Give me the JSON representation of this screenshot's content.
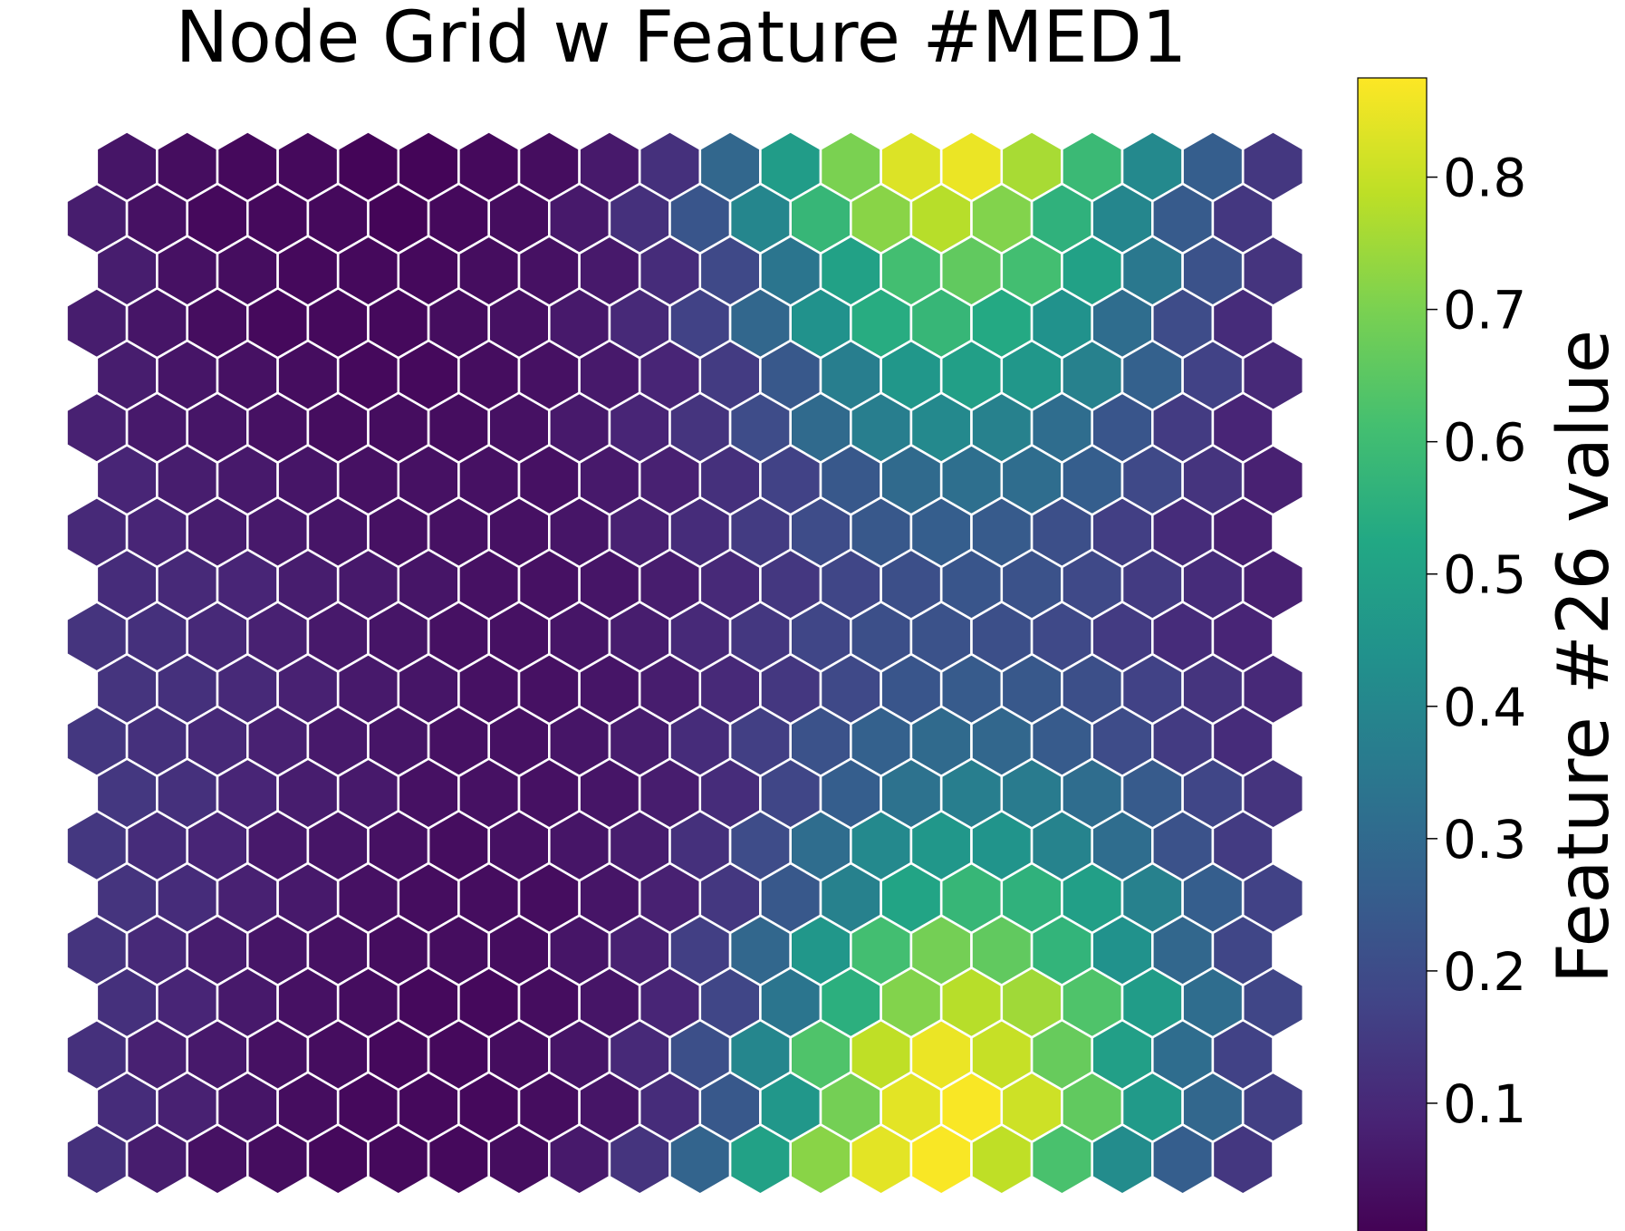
{
  "chart_data": {
    "type": "heatmap",
    "title": "Node Grid w Feature #MED1",
    "grid_shape": "hexagonal",
    "rows": 20,
    "cols": 20,
    "colormap": "viridis",
    "hex_edge_color": "#ffffff",
    "colorbar": {
      "label": "Feature #26 value",
      "range": [
        0.0,
        0.875
      ],
      "ticks": [
        0.1,
        0.2,
        0.3,
        0.4,
        0.5,
        0.6,
        0.7,
        0.8
      ],
      "tick_labels": [
        "0.1",
        "0.2",
        "0.3",
        "0.4",
        "0.5",
        "0.6",
        "0.7",
        "0.8"
      ]
    },
    "values": [
      [
        0.05,
        0.03,
        0.02,
        0.02,
        0.01,
        0.01,
        0.02,
        0.03,
        0.06,
        0.12,
        0.29,
        0.48,
        0.7,
        0.83,
        0.85,
        0.76,
        0.59,
        0.41,
        0.26,
        0.14
      ],
      [
        0.07,
        0.04,
        0.02,
        0.02,
        0.02,
        0.01,
        0.02,
        0.03,
        0.06,
        0.12,
        0.23,
        0.4,
        0.58,
        0.72,
        0.78,
        0.71,
        0.56,
        0.4,
        0.25,
        0.14
      ],
      [
        0.07,
        0.04,
        0.03,
        0.02,
        0.02,
        0.02,
        0.03,
        0.04,
        0.06,
        0.11,
        0.19,
        0.34,
        0.5,
        0.61,
        0.66,
        0.61,
        0.5,
        0.35,
        0.22,
        0.13
      ],
      [
        0.07,
        0.05,
        0.03,
        0.02,
        0.02,
        0.02,
        0.03,
        0.04,
        0.06,
        0.1,
        0.17,
        0.29,
        0.44,
        0.54,
        0.58,
        0.53,
        0.44,
        0.31,
        0.2,
        0.11
      ],
      [
        0.07,
        0.05,
        0.04,
        0.03,
        0.02,
        0.02,
        0.03,
        0.04,
        0.06,
        0.09,
        0.15,
        0.24,
        0.37,
        0.46,
        0.49,
        0.46,
        0.38,
        0.27,
        0.17,
        0.1
      ],
      [
        0.08,
        0.06,
        0.05,
        0.04,
        0.03,
        0.03,
        0.03,
        0.04,
        0.06,
        0.09,
        0.13,
        0.2,
        0.3,
        0.37,
        0.41,
        0.38,
        0.31,
        0.23,
        0.15,
        0.09
      ],
      [
        0.09,
        0.07,
        0.06,
        0.05,
        0.04,
        0.04,
        0.04,
        0.04,
        0.06,
        0.08,
        0.12,
        0.17,
        0.24,
        0.3,
        0.32,
        0.31,
        0.26,
        0.19,
        0.13,
        0.08
      ],
      [
        0.1,
        0.09,
        0.07,
        0.06,
        0.05,
        0.04,
        0.04,
        0.04,
        0.05,
        0.08,
        0.11,
        0.15,
        0.2,
        0.24,
        0.26,
        0.25,
        0.21,
        0.16,
        0.11,
        0.08
      ],
      [
        0.11,
        0.1,
        0.09,
        0.07,
        0.06,
        0.05,
        0.04,
        0.04,
        0.05,
        0.07,
        0.1,
        0.14,
        0.18,
        0.21,
        0.23,
        0.22,
        0.19,
        0.15,
        0.11,
        0.08
      ],
      [
        0.13,
        0.12,
        0.1,
        0.08,
        0.06,
        0.05,
        0.04,
        0.04,
        0.05,
        0.07,
        0.1,
        0.14,
        0.18,
        0.21,
        0.22,
        0.21,
        0.19,
        0.15,
        0.11,
        0.09
      ],
      [
        0.13,
        0.12,
        0.1,
        0.08,
        0.06,
        0.05,
        0.04,
        0.04,
        0.05,
        0.07,
        0.1,
        0.14,
        0.19,
        0.23,
        0.25,
        0.24,
        0.21,
        0.17,
        0.13,
        0.1
      ],
      [
        0.14,
        0.12,
        0.1,
        0.08,
        0.06,
        0.05,
        0.04,
        0.04,
        0.05,
        0.07,
        0.11,
        0.16,
        0.22,
        0.27,
        0.3,
        0.29,
        0.25,
        0.2,
        0.15,
        0.11
      ],
      [
        0.14,
        0.12,
        0.09,
        0.07,
        0.06,
        0.04,
        0.04,
        0.04,
        0.05,
        0.07,
        0.11,
        0.18,
        0.26,
        0.33,
        0.37,
        0.36,
        0.31,
        0.25,
        0.18,
        0.13
      ],
      [
        0.14,
        0.11,
        0.09,
        0.06,
        0.05,
        0.04,
        0.03,
        0.04,
        0.05,
        0.07,
        0.12,
        0.2,
        0.31,
        0.41,
        0.46,
        0.45,
        0.39,
        0.31,
        0.22,
        0.15
      ],
      [
        0.13,
        0.11,
        0.08,
        0.06,
        0.04,
        0.03,
        0.03,
        0.03,
        0.05,
        0.08,
        0.14,
        0.24,
        0.38,
        0.51,
        0.58,
        0.56,
        0.49,
        0.38,
        0.26,
        0.17
      ],
      [
        0.13,
        0.1,
        0.07,
        0.05,
        0.04,
        0.03,
        0.03,
        0.03,
        0.05,
        0.08,
        0.16,
        0.29,
        0.46,
        0.61,
        0.69,
        0.66,
        0.57,
        0.44,
        0.29,
        0.18
      ],
      [
        0.12,
        0.09,
        0.06,
        0.04,
        0.03,
        0.02,
        0.02,
        0.03,
        0.05,
        0.09,
        0.18,
        0.34,
        0.55,
        0.71,
        0.78,
        0.75,
        0.63,
        0.48,
        0.31,
        0.18
      ],
      [
        0.12,
        0.08,
        0.06,
        0.04,
        0.03,
        0.02,
        0.02,
        0.03,
        0.05,
        0.1,
        0.21,
        0.4,
        0.63,
        0.79,
        0.85,
        0.8,
        0.67,
        0.49,
        0.31,
        0.17
      ],
      [
        0.11,
        0.08,
        0.05,
        0.03,
        0.02,
        0.02,
        0.02,
        0.03,
        0.05,
        0.11,
        0.24,
        0.46,
        0.69,
        0.84,
        0.87,
        0.81,
        0.66,
        0.47,
        0.29,
        0.16
      ],
      [
        0.12,
        0.07,
        0.04,
        0.03,
        0.02,
        0.02,
        0.02,
        0.03,
        0.06,
        0.13,
        0.28,
        0.5,
        0.72,
        0.84,
        0.87,
        0.79,
        0.62,
        0.42,
        0.26,
        0.14
      ]
    ]
  }
}
